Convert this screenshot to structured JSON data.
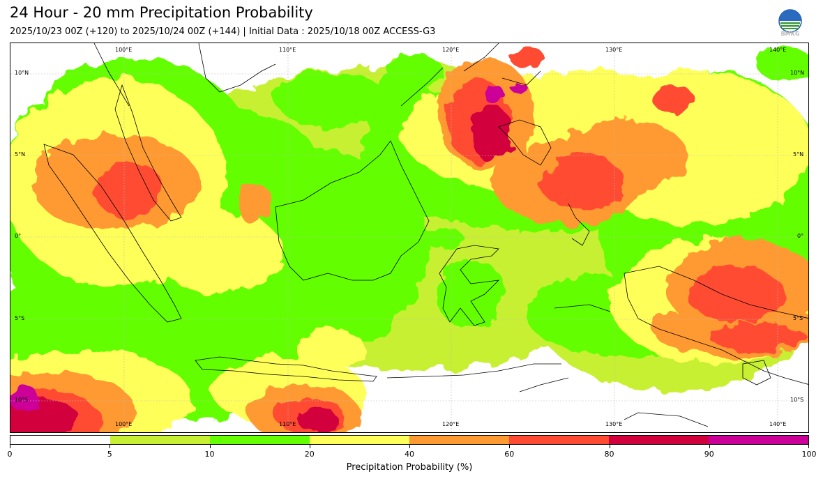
{
  "header": {
    "title": "24 Hour - 20 mm Precipitation Probability",
    "subtitle": "2025/10/23 00Z (+120) to 2025/10/24 00Z (+144) | Initial Data : 2025/10/18 00Z ACCESS-G3",
    "logo_text": "BMKG"
  },
  "map": {
    "lon_labels_top": [
      "100°E",
      "110°E",
      "120°E",
      "130°E",
      "140°E"
    ],
    "lon_labels_bottom": [
      "100°E",
      "110°E",
      "120°E",
      "130°E",
      "140°E"
    ],
    "lat_labels_left": [
      "10°N",
      "5°N",
      "0°",
      "5°S",
      "10°S"
    ],
    "lat_labels_right": [
      "10°N",
      "5°N",
      "0°",
      "5°S",
      "10°S"
    ]
  },
  "colorbar": {
    "colors": [
      "#ffffff",
      "#c8f032",
      "#64ff00",
      "#ffff5a",
      "#ff9a32",
      "#ff4b32",
      "#d2003c",
      "#cc0099"
    ],
    "ticks": [
      "0",
      "5",
      "10",
      "20",
      "40",
      "60",
      "80",
      "90",
      "100"
    ],
    "label": "Precipitation Probability (%)"
  }
}
